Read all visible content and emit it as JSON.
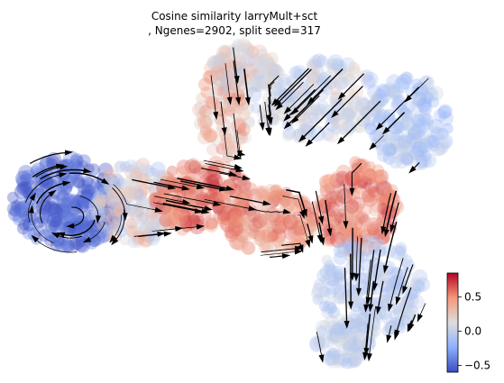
{
  "title_line1": "Cosine similarity larryMult+sct",
  "title_line2": ", Ngenes=2902, split seed=317",
  "chart_data": {
    "type": "scatter",
    "title": "Cosine similarity larryMult+sct\n, Ngenes=2902, split seed=317",
    "xlabel": "",
    "ylabel": "",
    "axes_visible": false,
    "overlay": "velocity streamlines (black arrows)",
    "colorbar": {
      "colormap": "coolwarm",
      "range": [
        -0.6,
        0.85
      ],
      "ticks": [
        0.5,
        0.0,
        -0.5
      ],
      "tick_labels": [
        "0.5",
        "0.0",
        "−0.5"
      ]
    },
    "colors": {
      "low": "#3b4cc0",
      "mid": "#dddddd",
      "high": "#b40426",
      "stream": "#000000"
    }
  }
}
